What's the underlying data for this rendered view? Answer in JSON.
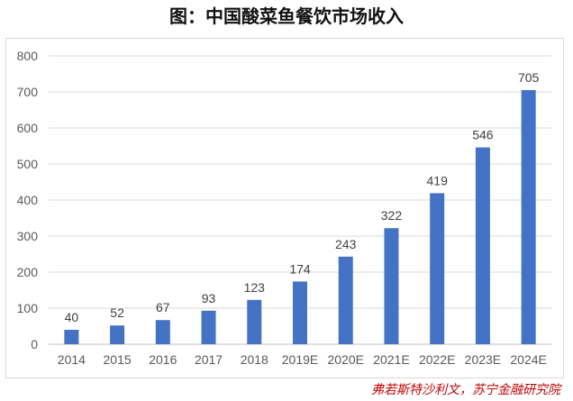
{
  "chart_data": {
    "type": "bar",
    "title": "图：中国酸菜鱼餐饮市场收入",
    "categories": [
      "2014",
      "2015",
      "2016",
      "2017",
      "2018",
      "2019E",
      "2020E",
      "2021E",
      "2022E",
      "2023E",
      "2024E"
    ],
    "values": [
      40,
      52,
      67,
      93,
      123,
      174,
      243,
      322,
      419,
      546,
      705
    ],
    "ylim": [
      0,
      800
    ],
    "yticks": [
      0,
      100,
      200,
      300,
      400,
      500,
      600,
      700,
      800
    ],
    "grid": true,
    "bar_color": "#4472c4",
    "source": "弗若斯特沙利文，苏宁金融研究院"
  }
}
